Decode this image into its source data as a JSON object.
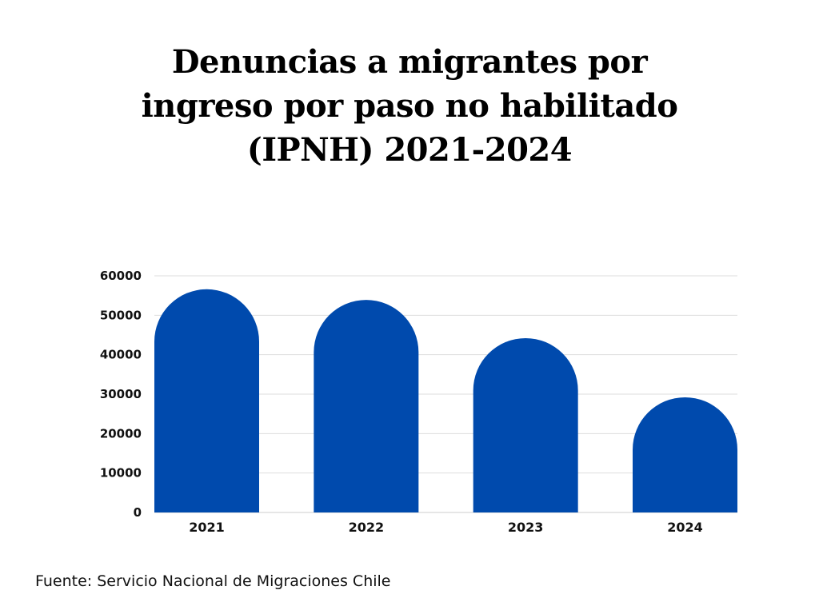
{
  "chart_data": {
    "type": "bar",
    "title_lines": [
      "Denuncias a migrantes por",
      "ingreso por paso no habilitado",
      "(IPNH) 2021-2024"
    ],
    "categories": [
      "2021",
      "2022",
      "2023",
      "2024"
    ],
    "values": [
      56600,
      53900,
      44200,
      29200
    ],
    "xlabel": "",
    "ylabel": "",
    "ylim": [
      0,
      60000
    ],
    "yticks": [
      0,
      10000,
      20000,
      30000,
      40000,
      50000,
      60000
    ],
    "ytick_labels": [
      "0",
      "10000",
      "20000",
      "30000",
      "40000",
      "50000",
      "60000"
    ],
    "grid": true,
    "legend": "none",
    "bar_color": "#004AAD",
    "grid_color": "#dddddd"
  },
  "source": "Fuente: Servicio Nacional de Migraciones Chile"
}
